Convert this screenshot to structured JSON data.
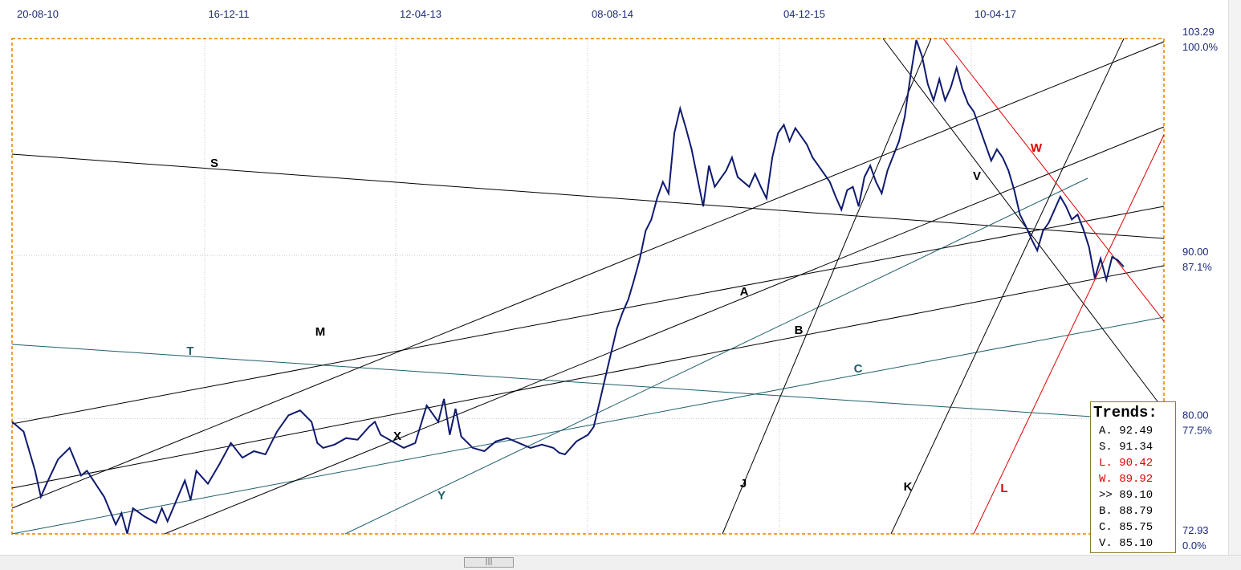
{
  "chart_data": {
    "type": "line",
    "x_tick_labels": [
      "20-08-10",
      "16-12-11",
      "12-04-13",
      "08-08-14",
      "04-12-15",
      "10-04-17"
    ],
    "y_tick_values": [
      "103.29",
      "90.00",
      "80.00",
      "72.93"
    ],
    "y_tick_percents": [
      "100.0%",
      "87.1%",
      "77.5%",
      "0.0%"
    ],
    "ylim": [
      72.93,
      103.29
    ],
    "grid": true,
    "colors": {
      "price": "#0f1a6e",
      "trend": "#000000",
      "teal_trend": "#1f5f6a",
      "red_trend": "#e00000",
      "frame": "#f0a030"
    },
    "price_series": {
      "name": "",
      "points": [
        [
          0.0,
          79.8
        ],
        [
          0.01,
          79.2
        ],
        [
          0.02,
          76.8
        ],
        [
          0.025,
          75.2
        ],
        [
          0.03,
          76.0
        ],
        [
          0.04,
          77.5
        ],
        [
          0.05,
          78.2
        ],
        [
          0.06,
          76.5
        ],
        [
          0.065,
          76.8
        ],
        [
          0.08,
          75.2
        ],
        [
          0.09,
          73.5
        ],
        [
          0.095,
          74.2
        ],
        [
          0.1,
          72.95
        ],
        [
          0.105,
          74.5
        ],
        [
          0.115,
          74.0
        ],
        [
          0.125,
          73.6
        ],
        [
          0.13,
          74.5
        ],
        [
          0.135,
          73.7
        ],
        [
          0.15,
          76.2
        ],
        [
          0.155,
          75.0
        ],
        [
          0.16,
          76.8
        ],
        [
          0.17,
          76.0
        ],
        [
          0.18,
          77.2
        ],
        [
          0.19,
          78.5
        ],
        [
          0.2,
          77.6
        ],
        [
          0.21,
          78.0
        ],
        [
          0.22,
          77.8
        ],
        [
          0.23,
          79.2
        ],
        [
          0.24,
          80.2
        ],
        [
          0.25,
          80.5
        ],
        [
          0.26,
          79.8
        ],
        [
          0.265,
          78.5
        ],
        [
          0.27,
          78.2
        ],
        [
          0.28,
          78.4
        ],
        [
          0.29,
          78.8
        ],
        [
          0.3,
          78.7
        ],
        [
          0.31,
          79.5
        ],
        [
          0.315,
          79.8
        ],
        [
          0.32,
          79.0
        ],
        [
          0.33,
          78.6
        ],
        [
          0.34,
          78.2
        ],
        [
          0.35,
          78.5
        ],
        [
          0.36,
          80.8
        ],
        [
          0.37,
          79.8
        ],
        [
          0.375,
          81.2
        ],
        [
          0.38,
          79.0
        ],
        [
          0.385,
          80.6
        ],
        [
          0.39,
          78.9
        ],
        [
          0.4,
          78.2
        ],
        [
          0.41,
          78.0
        ],
        [
          0.42,
          78.6
        ],
        [
          0.43,
          78.8
        ],
        [
          0.44,
          78.5
        ],
        [
          0.45,
          78.2
        ],
        [
          0.46,
          78.4
        ],
        [
          0.47,
          78.2
        ],
        [
          0.475,
          77.9
        ],
        [
          0.48,
          77.8
        ],
        [
          0.49,
          78.6
        ],
        [
          0.5,
          79.0
        ],
        [
          0.505,
          79.5
        ],
        [
          0.51,
          81.0
        ],
        [
          0.515,
          82.5
        ],
        [
          0.52,
          84.0
        ],
        [
          0.525,
          85.5
        ],
        [
          0.53,
          86.5
        ],
        [
          0.535,
          87.3
        ],
        [
          0.54,
          88.5
        ],
        [
          0.545,
          89.8
        ],
        [
          0.55,
          91.5
        ],
        [
          0.555,
          92.2
        ],
        [
          0.56,
          93.5
        ],
        [
          0.565,
          94.5
        ],
        [
          0.57,
          93.8
        ],
        [
          0.575,
          97.5
        ],
        [
          0.58,
          99.0
        ],
        [
          0.585,
          97.8
        ],
        [
          0.59,
          96.5
        ],
        [
          0.6,
          93.0
        ],
        [
          0.605,
          95.5
        ],
        [
          0.61,
          94.2
        ],
        [
          0.62,
          95.2
        ],
        [
          0.625,
          96.0
        ],
        [
          0.63,
          94.8
        ],
        [
          0.64,
          94.2
        ],
        [
          0.645,
          95.0
        ],
        [
          0.65,
          94.2
        ],
        [
          0.655,
          93.5
        ],
        [
          0.66,
          96.0
        ],
        [
          0.665,
          97.5
        ],
        [
          0.67,
          98.0
        ],
        [
          0.675,
          97.0
        ],
        [
          0.68,
          97.8
        ],
        [
          0.69,
          96.8
        ],
        [
          0.695,
          96.0
        ],
        [
          0.7,
          95.5
        ],
        [
          0.71,
          94.5
        ],
        [
          0.715,
          93.6
        ],
        [
          0.72,
          92.8
        ],
        [
          0.725,
          94.0
        ],
        [
          0.73,
          94.2
        ],
        [
          0.735,
          93.0
        ],
        [
          0.74,
          94.8
        ],
        [
          0.745,
          95.5
        ],
        [
          0.75,
          94.5
        ],
        [
          0.755,
          93.8
        ],
        [
          0.76,
          95.2
        ],
        [
          0.77,
          97.0
        ],
        [
          0.775,
          98.5
        ],
        [
          0.78,
          101.0
        ],
        [
          0.785,
          103.2
        ],
        [
          0.79,
          102.2
        ],
        [
          0.795,
          100.5
        ],
        [
          0.8,
          99.5
        ],
        [
          0.805,
          100.8
        ],
        [
          0.81,
          99.5
        ],
        [
          0.815,
          100.3
        ],
        [
          0.82,
          101.5
        ],
        [
          0.825,
          100.2
        ],
        [
          0.83,
          99.3
        ],
        [
          0.835,
          98.8
        ],
        [
          0.84,
          97.8
        ],
        [
          0.845,
          96.8
        ],
        [
          0.85,
          95.8
        ],
        [
          0.855,
          96.5
        ],
        [
          0.86,
          96.0
        ],
        [
          0.865,
          95.2
        ],
        [
          0.87,
          94.0
        ],
        [
          0.875,
          92.5
        ],
        [
          0.88,
          91.8
        ],
        [
          0.885,
          91.0
        ],
        [
          0.89,
          90.3
        ],
        [
          0.895,
          91.5
        ],
        [
          0.9,
          92.0
        ],
        [
          0.905,
          92.8
        ],
        [
          0.91,
          93.6
        ],
        [
          0.915,
          93.0
        ],
        [
          0.92,
          92.2
        ],
        [
          0.925,
          92.5
        ],
        [
          0.93,
          91.6
        ],
        [
          0.935,
          90.5
        ],
        [
          0.94,
          88.6
        ],
        [
          0.945,
          89.8
        ],
        [
          0.95,
          88.5
        ],
        [
          0.955,
          89.9
        ],
        [
          0.96,
          89.7
        ],
        [
          0.965,
          89.3
        ]
      ]
    },
    "trend_lines": [
      {
        "label": "S",
        "color": "black"
      },
      {
        "label": "T",
        "color": "teal"
      },
      {
        "label": "M",
        "color": "black"
      },
      {
        "label": "A",
        "color": "black"
      },
      {
        "label": "B",
        "color": "black"
      },
      {
        "label": "C",
        "color": "teal"
      },
      {
        "label": "X",
        "color": "black"
      },
      {
        "label": "Y",
        "color": "teal"
      },
      {
        "label": "J",
        "color": "black"
      },
      {
        "label": "K",
        "color": "black"
      },
      {
        "label": "V",
        "color": "black"
      },
      {
        "label": "W",
        "color": "red"
      },
      {
        "label": "L",
        "color": "red"
      }
    ],
    "trends_panel": {
      "title": "Trends:",
      "rows": [
        {
          "text": "A. 92.49",
          "color": "black"
        },
        {
          "text": "S. 91.34",
          "color": "black"
        },
        {
          "text": "L. 90.42",
          "color": "red"
        },
        {
          "text": "W. 89.92",
          "color": "red"
        },
        {
          "text": ">> 89.10",
          "color": "black"
        },
        {
          "text": "B. 88.79",
          "color": "black"
        },
        {
          "text": "C. 85.75",
          "color": "black"
        },
        {
          "text": "V. 85.10",
          "color": "black"
        }
      ]
    }
  },
  "scrollbar": {
    "thumb_label": "|||"
  }
}
